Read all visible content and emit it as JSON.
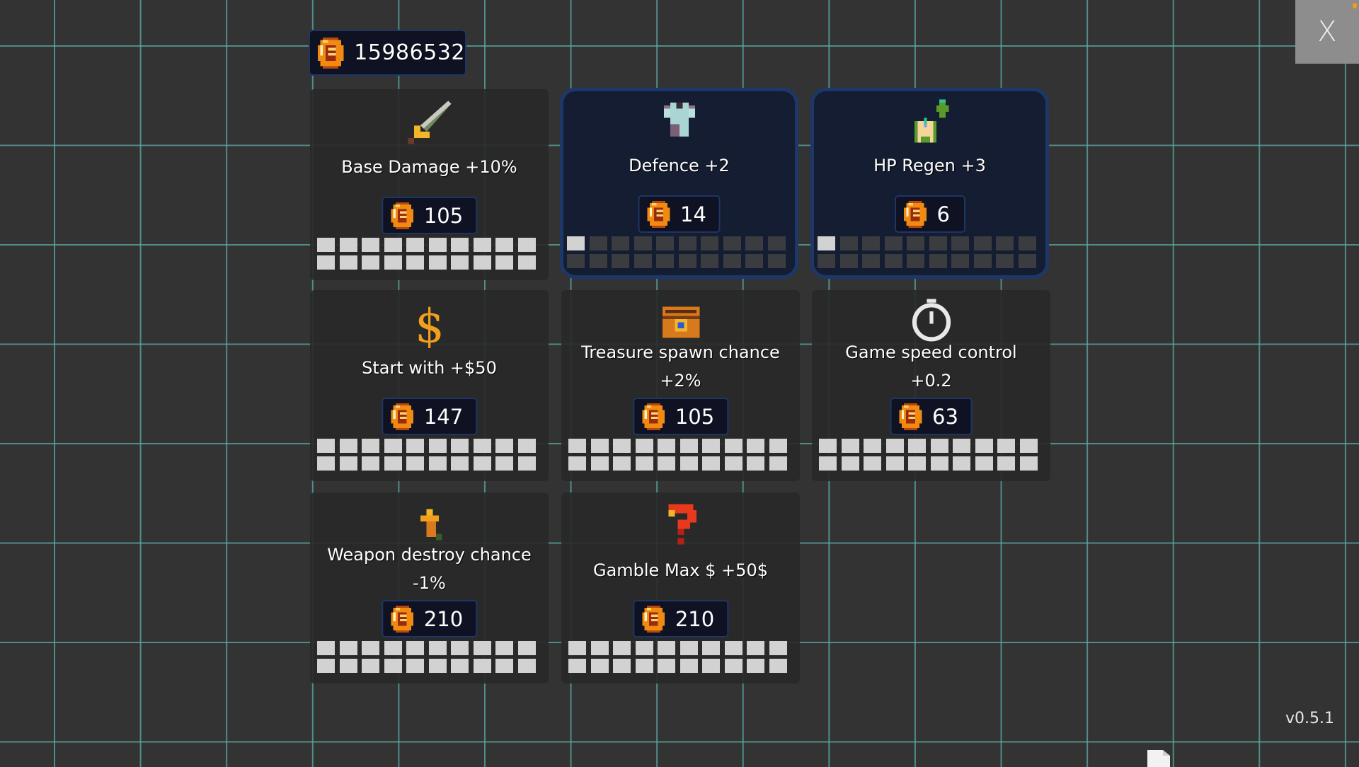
{
  "wallet": {
    "amount": "15986532",
    "icon": "coin-icon"
  },
  "close_button": {
    "label": "X"
  },
  "version": "v0.5.1",
  "colors": {
    "background": "#333333",
    "grid": "#5aaaa5",
    "selected_border": "#1d3868",
    "pip_filled": "#d2d2d2",
    "pip_empty": "#3b3c40",
    "coin": "#f08a10"
  },
  "upgrades": [
    {
      "id": "base-damage",
      "icon": "sword-icon",
      "title": "Base Damage +10%",
      "price": "105",
      "level": 20,
      "max_level": 20,
      "selected": false
    },
    {
      "id": "defence",
      "icon": "armor-icon",
      "title": "Defence +2",
      "price": "14",
      "level": 1,
      "max_level": 20,
      "selected": true
    },
    {
      "id": "hp-regen",
      "icon": "hp-regen-icon",
      "title": "HP Regen +3",
      "price": "6",
      "level": 1,
      "max_level": 20,
      "selected": true
    },
    {
      "id": "start-money",
      "icon": "dollar-icon",
      "title": "Start with +$50",
      "price": "147",
      "level": 20,
      "max_level": 20,
      "selected": false
    },
    {
      "id": "treasure-spawn",
      "icon": "treasure-chest-icon",
      "title": "Treasure spawn chance +2%",
      "price": "105",
      "level": 20,
      "max_level": 20,
      "selected": false
    },
    {
      "id": "game-speed",
      "icon": "stopwatch-icon",
      "title": "Game speed control +0.2",
      "price": "63",
      "level": 20,
      "max_level": 20,
      "selected": false
    },
    {
      "id": "weapon-destroy",
      "icon": "arrow-up-icon",
      "title": "Weapon destroy chance -1%",
      "price": "210",
      "level": 20,
      "max_level": 20,
      "selected": false
    },
    {
      "id": "gamble-max",
      "icon": "question-mark-icon",
      "title": "Gamble Max $ +50$",
      "price": "210",
      "level": 20,
      "max_level": 20,
      "selected": false
    }
  ]
}
